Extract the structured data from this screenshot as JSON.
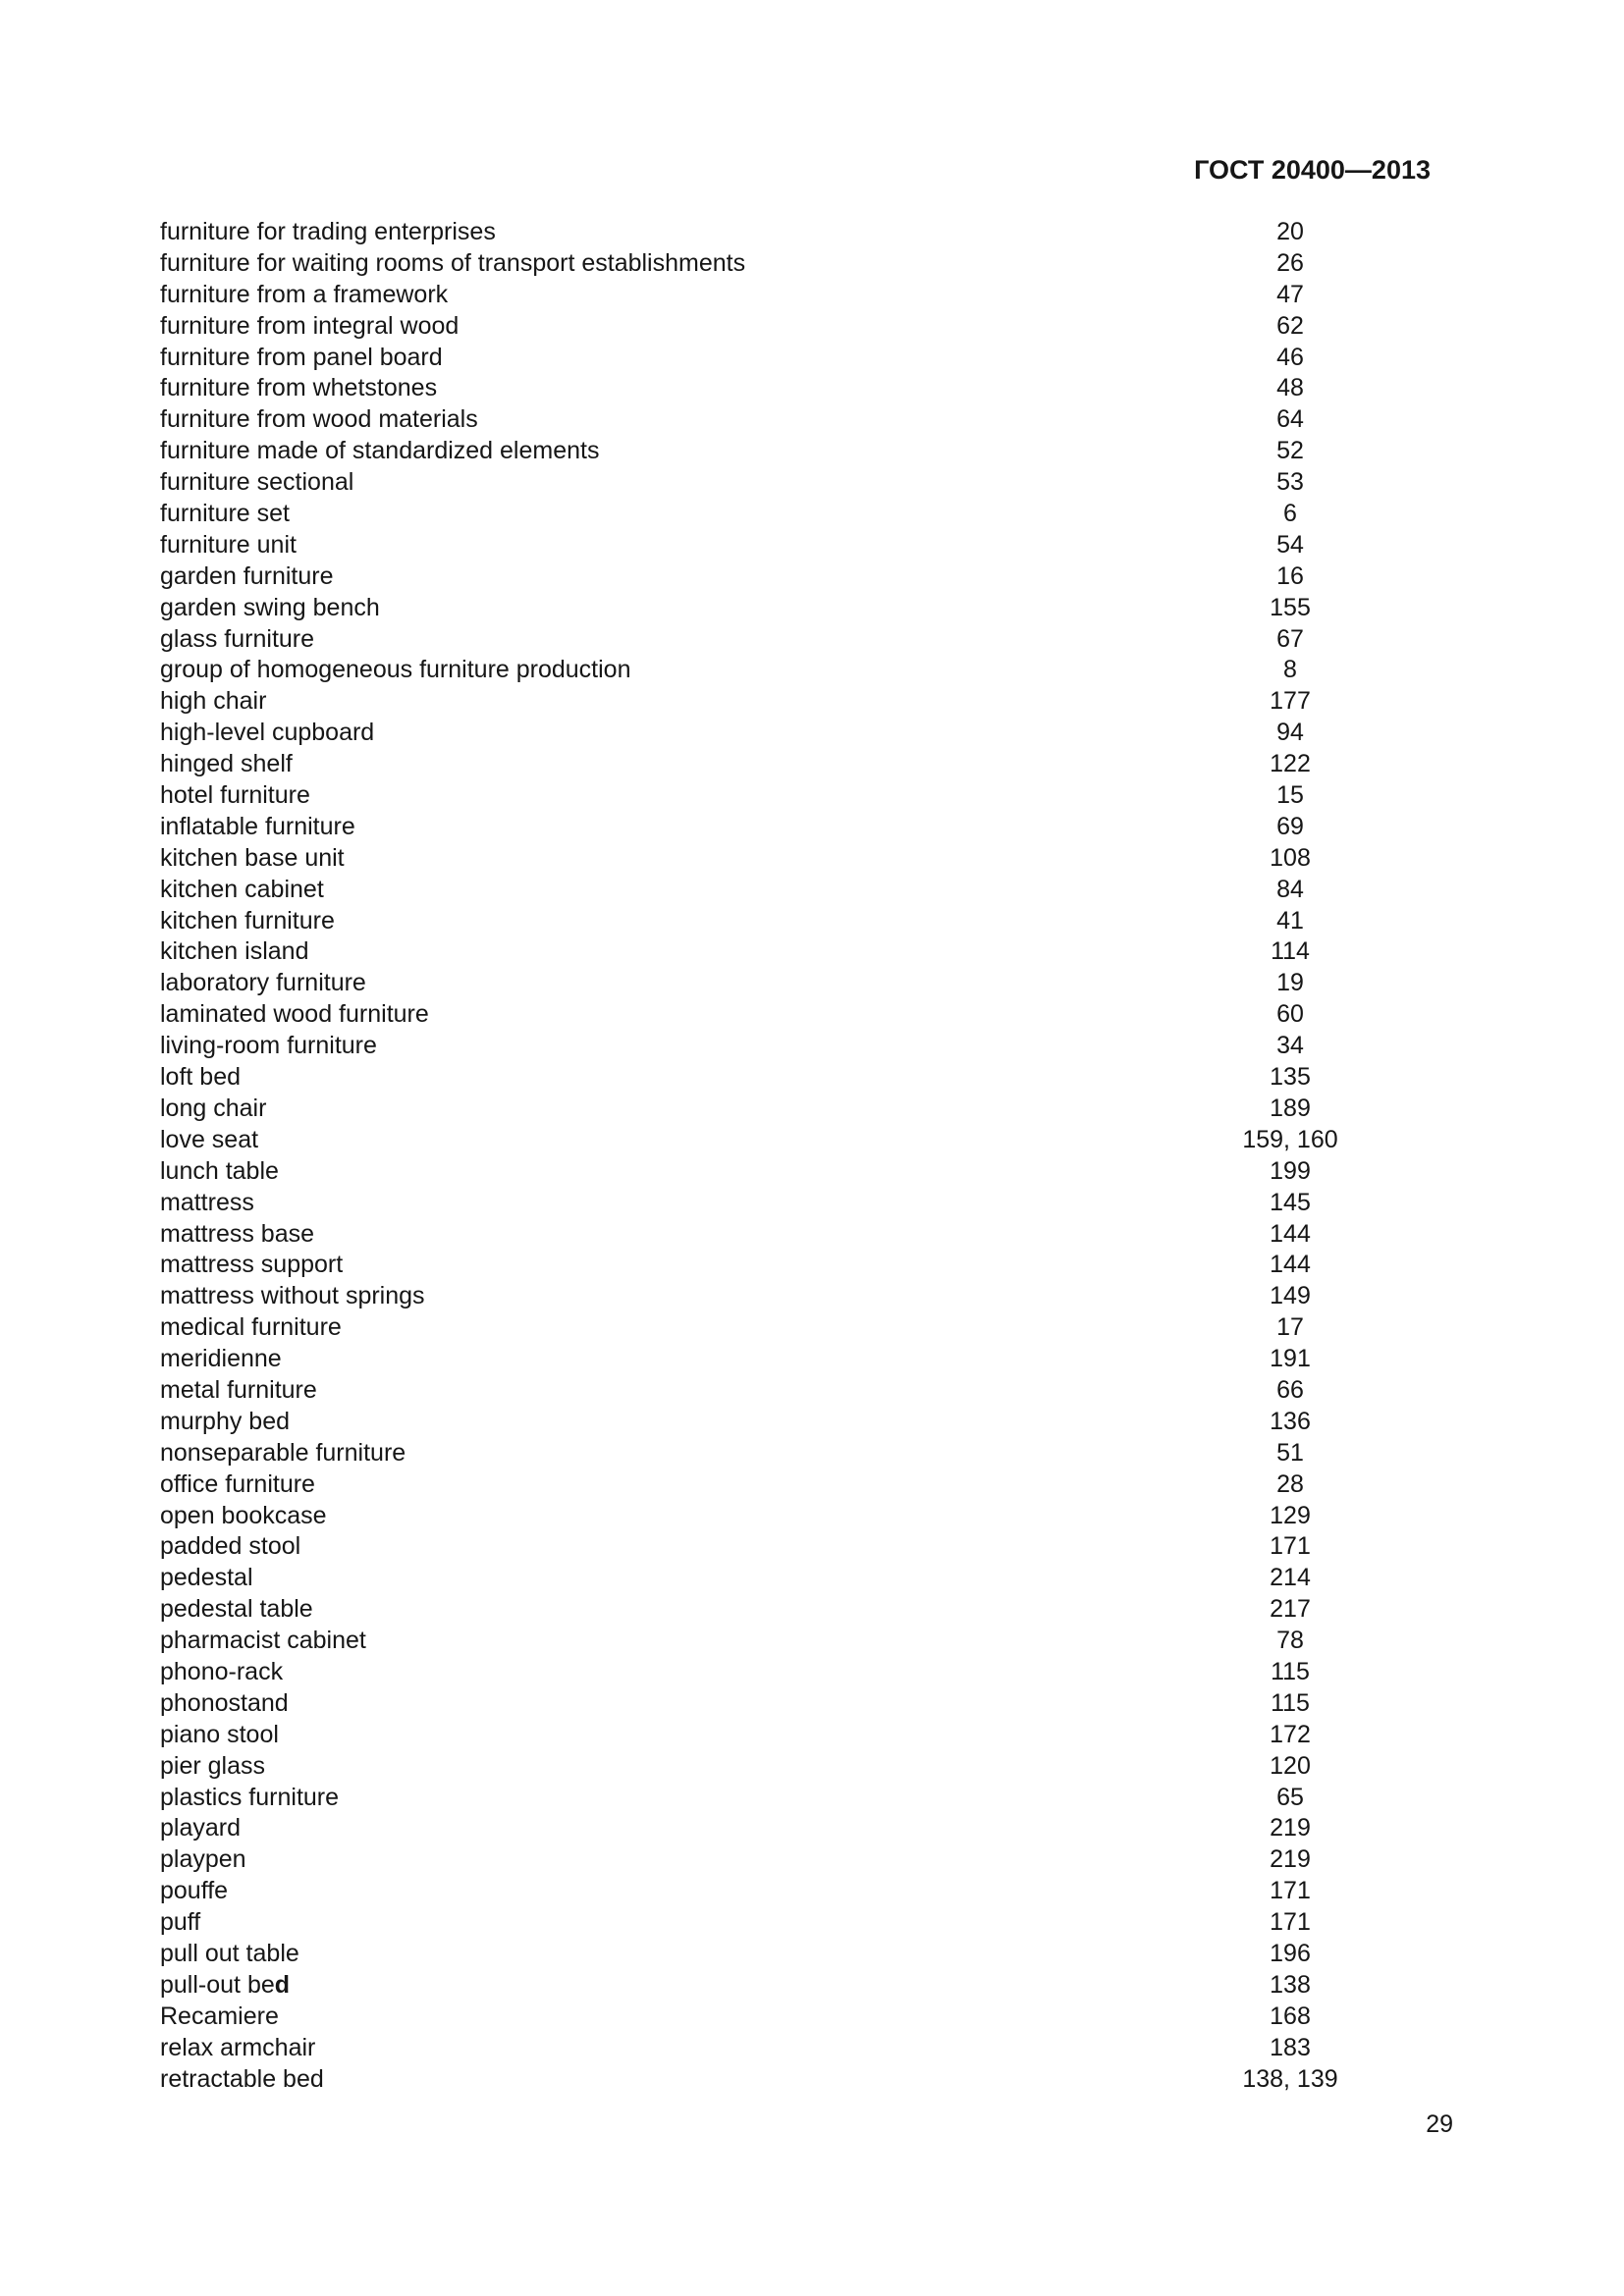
{
  "page": {
    "header": "ГОСТ 20400—2013",
    "page_number": "29"
  },
  "index": {
    "entries": [
      {
        "term": "furniture for trading enterprises",
        "pages": "20"
      },
      {
        "term": "furniture for waiting rooms of transport establishments",
        "pages": "26"
      },
      {
        "term": "furniture from a framework",
        "pages": "47"
      },
      {
        "term": "furniture from integral wood",
        "pages": "62"
      },
      {
        "term": "furniture from panel board",
        "pages": "46"
      },
      {
        "term": "furniture from whetstones",
        "pages": "48"
      },
      {
        "term": "furniture from wood materials",
        "pages": "64"
      },
      {
        "term": "furniture made of standardized elements",
        "pages": "52"
      },
      {
        "term": "furniture sectional",
        "pages": "53"
      },
      {
        "term": "furniture set",
        "pages": "6"
      },
      {
        "term": "furniture unit",
        "pages": "54"
      },
      {
        "term": "garden furniture",
        "pages": "16"
      },
      {
        "term": "garden swing bench",
        "pages": "155"
      },
      {
        "term": "glass furniture",
        "pages": "67"
      },
      {
        "term": "group of homogeneous furniture production",
        "pages": "8"
      },
      {
        "term": "high chair",
        "pages": "177"
      },
      {
        "term": "high-level cupboard",
        "pages": "94"
      },
      {
        "term": "hinged shelf",
        "pages": "122"
      },
      {
        "term": "hotel furniture",
        "pages": "15"
      },
      {
        "term": "inflatable furniture",
        "pages": "69"
      },
      {
        "term": "kitchen base unit",
        "pages": "108"
      },
      {
        "term": "kitchen cabinet",
        "pages": "84"
      },
      {
        "term": "kitchen furniture",
        "pages": "41"
      },
      {
        "term": "kitchen island",
        "pages": "114"
      },
      {
        "term": "laboratory furniture",
        "pages": "19"
      },
      {
        "term": "laminated wood furniture",
        "pages": "60"
      },
      {
        "term": "living-room furniture",
        "pages": "34"
      },
      {
        "term": "loft bed",
        "pages": "135"
      },
      {
        "term": "long chair",
        "pages": "189"
      },
      {
        "term": "love seat",
        "pages": "159, 160"
      },
      {
        "term": "lunch table",
        "pages": "199"
      },
      {
        "term": "mattress",
        "pages": "145"
      },
      {
        "term": "mattress base",
        "pages": "144"
      },
      {
        "term": "mattress support",
        "pages": "144"
      },
      {
        "term": "mattress without springs",
        "pages": "149"
      },
      {
        "term": "medical furniture",
        "pages": "17"
      },
      {
        "term": "meridienne",
        "pages": "191"
      },
      {
        "term": "metal furniture",
        "pages": "66"
      },
      {
        "term": "murphy bed",
        "pages": "136"
      },
      {
        "term": "nonseparable furniture",
        "pages": "51"
      },
      {
        "term": "office furniture",
        "pages": "28"
      },
      {
        "term": "open bookcase",
        "pages": "129"
      },
      {
        "term": "padded stool",
        "pages": "171"
      },
      {
        "term": "pedestal",
        "pages": "214"
      },
      {
        "term": "pedestal table",
        "pages": "217"
      },
      {
        "term": "pharmacist cabinet",
        "pages": "78"
      },
      {
        "term": "phono-rack",
        "pages": "115"
      },
      {
        "term": "phonostand",
        "pages": "115"
      },
      {
        "term": "piano stool",
        "pages": "172"
      },
      {
        "term": "pier glass",
        "pages": "120"
      },
      {
        "term": "plastics furniture",
        "pages": "65"
      },
      {
        "term": "playard",
        "pages": "219"
      },
      {
        "term": "playpen",
        "pages": "219"
      },
      {
        "term": "pouffe",
        "pages": "171"
      },
      {
        "term": "puff",
        "pages": "171"
      },
      {
        "term": "pull out table",
        "pages": "196"
      },
      {
        "term": "pull-out be",
        "term_bold": "d",
        "pages": "138"
      },
      {
        "term": "Recamiere",
        "pages": "168"
      },
      {
        "term": "relax armchair",
        "pages": "183"
      },
      {
        "term": "retractable bed",
        "pages": "138, 139"
      }
    ]
  }
}
